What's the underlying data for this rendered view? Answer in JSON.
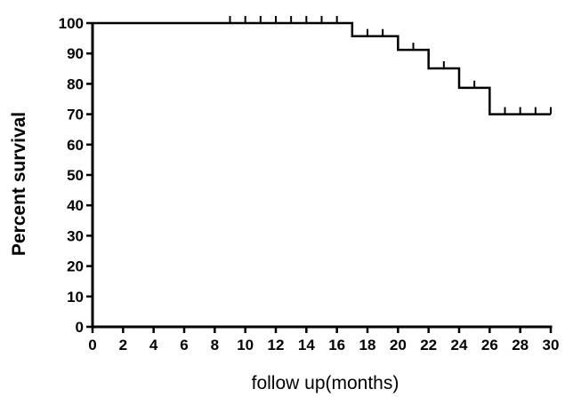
{
  "chart_data": {
    "type": "line",
    "title": "",
    "xlabel": "follow up(months)",
    "ylabel": "Percent survival",
    "xlim": [
      0,
      30
    ],
    "ylim": [
      0,
      100
    ],
    "x_ticks": [
      0,
      2,
      4,
      6,
      8,
      10,
      12,
      14,
      16,
      18,
      20,
      22,
      24,
      26,
      28,
      30
    ],
    "y_ticks": [
      0,
      10,
      20,
      30,
      40,
      50,
      60,
      70,
      80,
      90,
      100
    ],
    "grid": false,
    "step": true,
    "series": [
      {
        "steps": [
          {
            "x": 0,
            "y": 100
          },
          {
            "x": 17,
            "y": 95.7
          },
          {
            "x": 20,
            "y": 91.2
          },
          {
            "x": 22,
            "y": 85.1
          },
          {
            "x": 24,
            "y": 78.7
          },
          {
            "x": 26,
            "y": 70.0
          }
        ],
        "end_x": 30,
        "censored": [
          {
            "x": 9,
            "y": 100
          },
          {
            "x": 10,
            "y": 100
          },
          {
            "x": 11,
            "y": 100
          },
          {
            "x": 12,
            "y": 100
          },
          {
            "x": 13,
            "y": 100
          },
          {
            "x": 14,
            "y": 100
          },
          {
            "x": 15,
            "y": 100
          },
          {
            "x": 16,
            "y": 100
          },
          {
            "x": 18,
            "y": 95.7
          },
          {
            "x": 19,
            "y": 95.7
          },
          {
            "x": 21,
            "y": 91.2
          },
          {
            "x": 23,
            "y": 85.1
          },
          {
            "x": 25,
            "y": 78.7
          },
          {
            "x": 27,
            "y": 70.0
          },
          {
            "x": 28,
            "y": 70.0
          },
          {
            "x": 29,
            "y": 70.0
          },
          {
            "x": 30,
            "y": 70.0
          }
        ]
      }
    ]
  }
}
